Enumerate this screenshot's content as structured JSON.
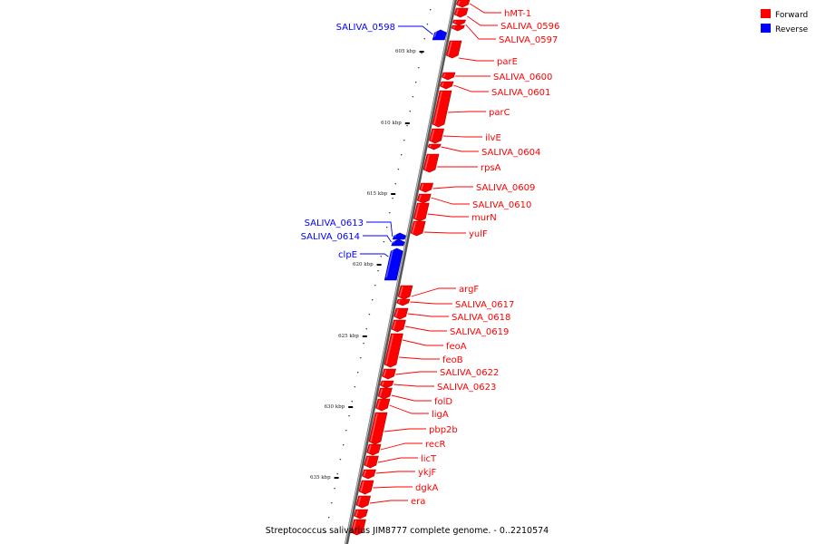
{
  "caption": "Streptococcus salivarius JIM8777 complete genome. - 0..2210574",
  "legend": [
    {
      "label": "Forward",
      "color": "#ff0000"
    },
    {
      "label": "Reverse",
      "color": "#0000ff"
    }
  ],
  "colors": {
    "forward": "#ff0000",
    "reverse": "#0000ff",
    "backbone": "#888888"
  },
  "ticks": [
    "605 kbp",
    "610 kbp",
    "615 kbp",
    "620 kbp",
    "625 kbp",
    "630 kbp",
    "635 kbp"
  ],
  "forward_genes": [
    "hMT-1",
    "SALIVA_0596",
    "SALIVA_0597",
    "parE",
    "SALIVA_0600",
    "SALIVA_0601",
    "parC",
    "ilvE",
    "SALIVA_0604",
    "rpsA",
    "SALIVA_0609",
    "SALIVA_0610",
    "murN",
    "yulF",
    "argF",
    "SALIVA_0617",
    "SALIVA_0618",
    "SALIVA_0619",
    "feoA",
    "feoB",
    "SALIVA_0622",
    "SALIVA_0623",
    "folD",
    "ligA",
    "pbp2b",
    "recR",
    "licT",
    "ykjF",
    "dgkA",
    "era"
  ],
  "reverse_genes": [
    "SALIVA_0598",
    "SALIVA_0613",
    "SALIVA_0614",
    "clpE"
  ]
}
